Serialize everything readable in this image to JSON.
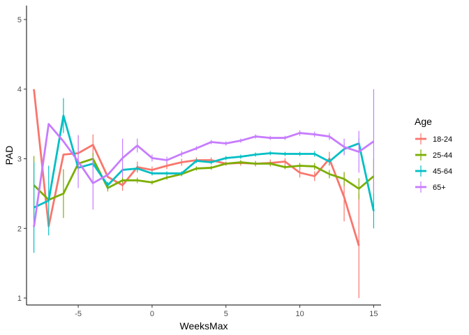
{
  "chart_data": {
    "type": "line",
    "title": "",
    "xlabel": "WeeksMax",
    "ylabel": "PAD",
    "xlim": [
      -8.5,
      15.5
    ],
    "ylim": [
      0.9,
      5.2
    ],
    "x_ticks": [
      -5,
      0,
      5,
      10,
      15
    ],
    "x_tick_labels": [
      "-5",
      "0",
      "5",
      "10",
      "15"
    ],
    "y_ticks": [
      1,
      2,
      3,
      4,
      5
    ],
    "y_tick_labels": [
      "1",
      "2",
      "3",
      "4",
      "5"
    ],
    "grid": false,
    "legend": {
      "title": "Age",
      "position": "right"
    },
    "series": [
      {
        "name": "18-24",
        "color": "#F8766D",
        "x": [
          -8,
          -7,
          -6,
          -5,
          -4,
          -3,
          -2,
          -1,
          0,
          1,
          2,
          3,
          4,
          5,
          6,
          7,
          8,
          9,
          10,
          11,
          12,
          13,
          14
        ],
        "y": [
          4.0,
          2.03,
          3.06,
          3.08,
          3.2,
          2.74,
          2.62,
          2.88,
          2.84,
          2.9,
          2.95,
          2.98,
          2.98,
          2.93,
          2.94,
          2.93,
          2.94,
          2.96,
          2.8,
          2.75,
          3.0,
          2.45,
          1.75
        ],
        "err": [
          0.0,
          0.0,
          0.0,
          0.25,
          0.15,
          0.0,
          0.08,
          0.08,
          0.05,
          0.05,
          0.05,
          0.04,
          0.04,
          0.03,
          0.04,
          0.04,
          0.05,
          0.05,
          0.07,
          0.07,
          0.1,
          0.35,
          0.75
        ]
      },
      {
        "name": "25-44",
        "color": "#7CAE00",
        "x": [
          -8,
          -7,
          -6,
          -5,
          -4,
          -3,
          -2,
          -1,
          0,
          1,
          2,
          3,
          4,
          5,
          6,
          7,
          8,
          9,
          10,
          11,
          12,
          13,
          14,
          15
        ],
        "y": [
          2.62,
          2.41,
          2.5,
          2.93,
          3.0,
          2.58,
          2.69,
          2.69,
          2.66,
          2.73,
          2.78,
          2.86,
          2.87,
          2.93,
          2.95,
          2.93,
          2.93,
          2.88,
          2.9,
          2.89,
          2.78,
          2.71,
          2.57,
          2.75
        ],
        "err": [
          0.42,
          0.0,
          0.35,
          0.0,
          0.08,
          0.05,
          0.04,
          0.04,
          0.03,
          0.03,
          0.03,
          0.03,
          0.03,
          0.02,
          0.03,
          0.03,
          0.03,
          0.03,
          0.04,
          0.05,
          0.06,
          0.1,
          0.15,
          0.25
        ]
      },
      {
        "name": "45-64",
        "color": "#00BFC4",
        "x": [
          -8,
          -7,
          -6,
          -5,
          -4,
          -3,
          -2,
          -1,
          0,
          1,
          2,
          3,
          4,
          5,
          6,
          7,
          8,
          9,
          10,
          11,
          12,
          13,
          14,
          15
        ],
        "y": [
          2.3,
          2.4,
          3.62,
          2.87,
          2.93,
          2.62,
          2.84,
          2.86,
          2.79,
          2.79,
          2.79,
          2.97,
          2.95,
          3.01,
          3.03,
          3.06,
          3.08,
          3.07,
          3.07,
          3.07,
          2.96,
          3.14,
          3.22,
          2.25
        ],
        "err": [
          0.65,
          0.5,
          0.25,
          0.0,
          0.05,
          0.05,
          0.04,
          0.04,
          0.03,
          0.03,
          0.03,
          0.03,
          0.03,
          0.03,
          0.03,
          0.03,
          0.03,
          0.03,
          0.03,
          0.04,
          0.05,
          0.08,
          0.08,
          0.25
        ]
      },
      {
        "name": "65+",
        "color": "#C77CFF",
        "x": [
          -8,
          -7,
          -6,
          -5,
          -4,
          -3,
          -2,
          -1,
          0,
          1,
          2,
          3,
          4,
          5,
          6,
          7,
          8,
          9,
          10,
          11,
          12,
          13,
          14,
          15
        ],
        "y": [
          2.02,
          3.5,
          3.25,
          2.96,
          2.65,
          2.77,
          3.01,
          3.19,
          3.01,
          2.98,
          3.07,
          3.15,
          3.24,
          3.22,
          3.26,
          3.32,
          3.3,
          3.3,
          3.37,
          3.35,
          3.32,
          3.17,
          3.1,
          3.25
        ],
        "err": [
          0.0,
          0.0,
          0.0,
          0.38,
          0.38,
          0.0,
          0.28,
          0.1,
          0.05,
          0.05,
          0.04,
          0.03,
          0.03,
          0.03,
          0.03,
          0.03,
          0.03,
          0.03,
          0.04,
          0.04,
          0.05,
          0.12,
          0.3,
          0.75
        ]
      }
    ]
  }
}
